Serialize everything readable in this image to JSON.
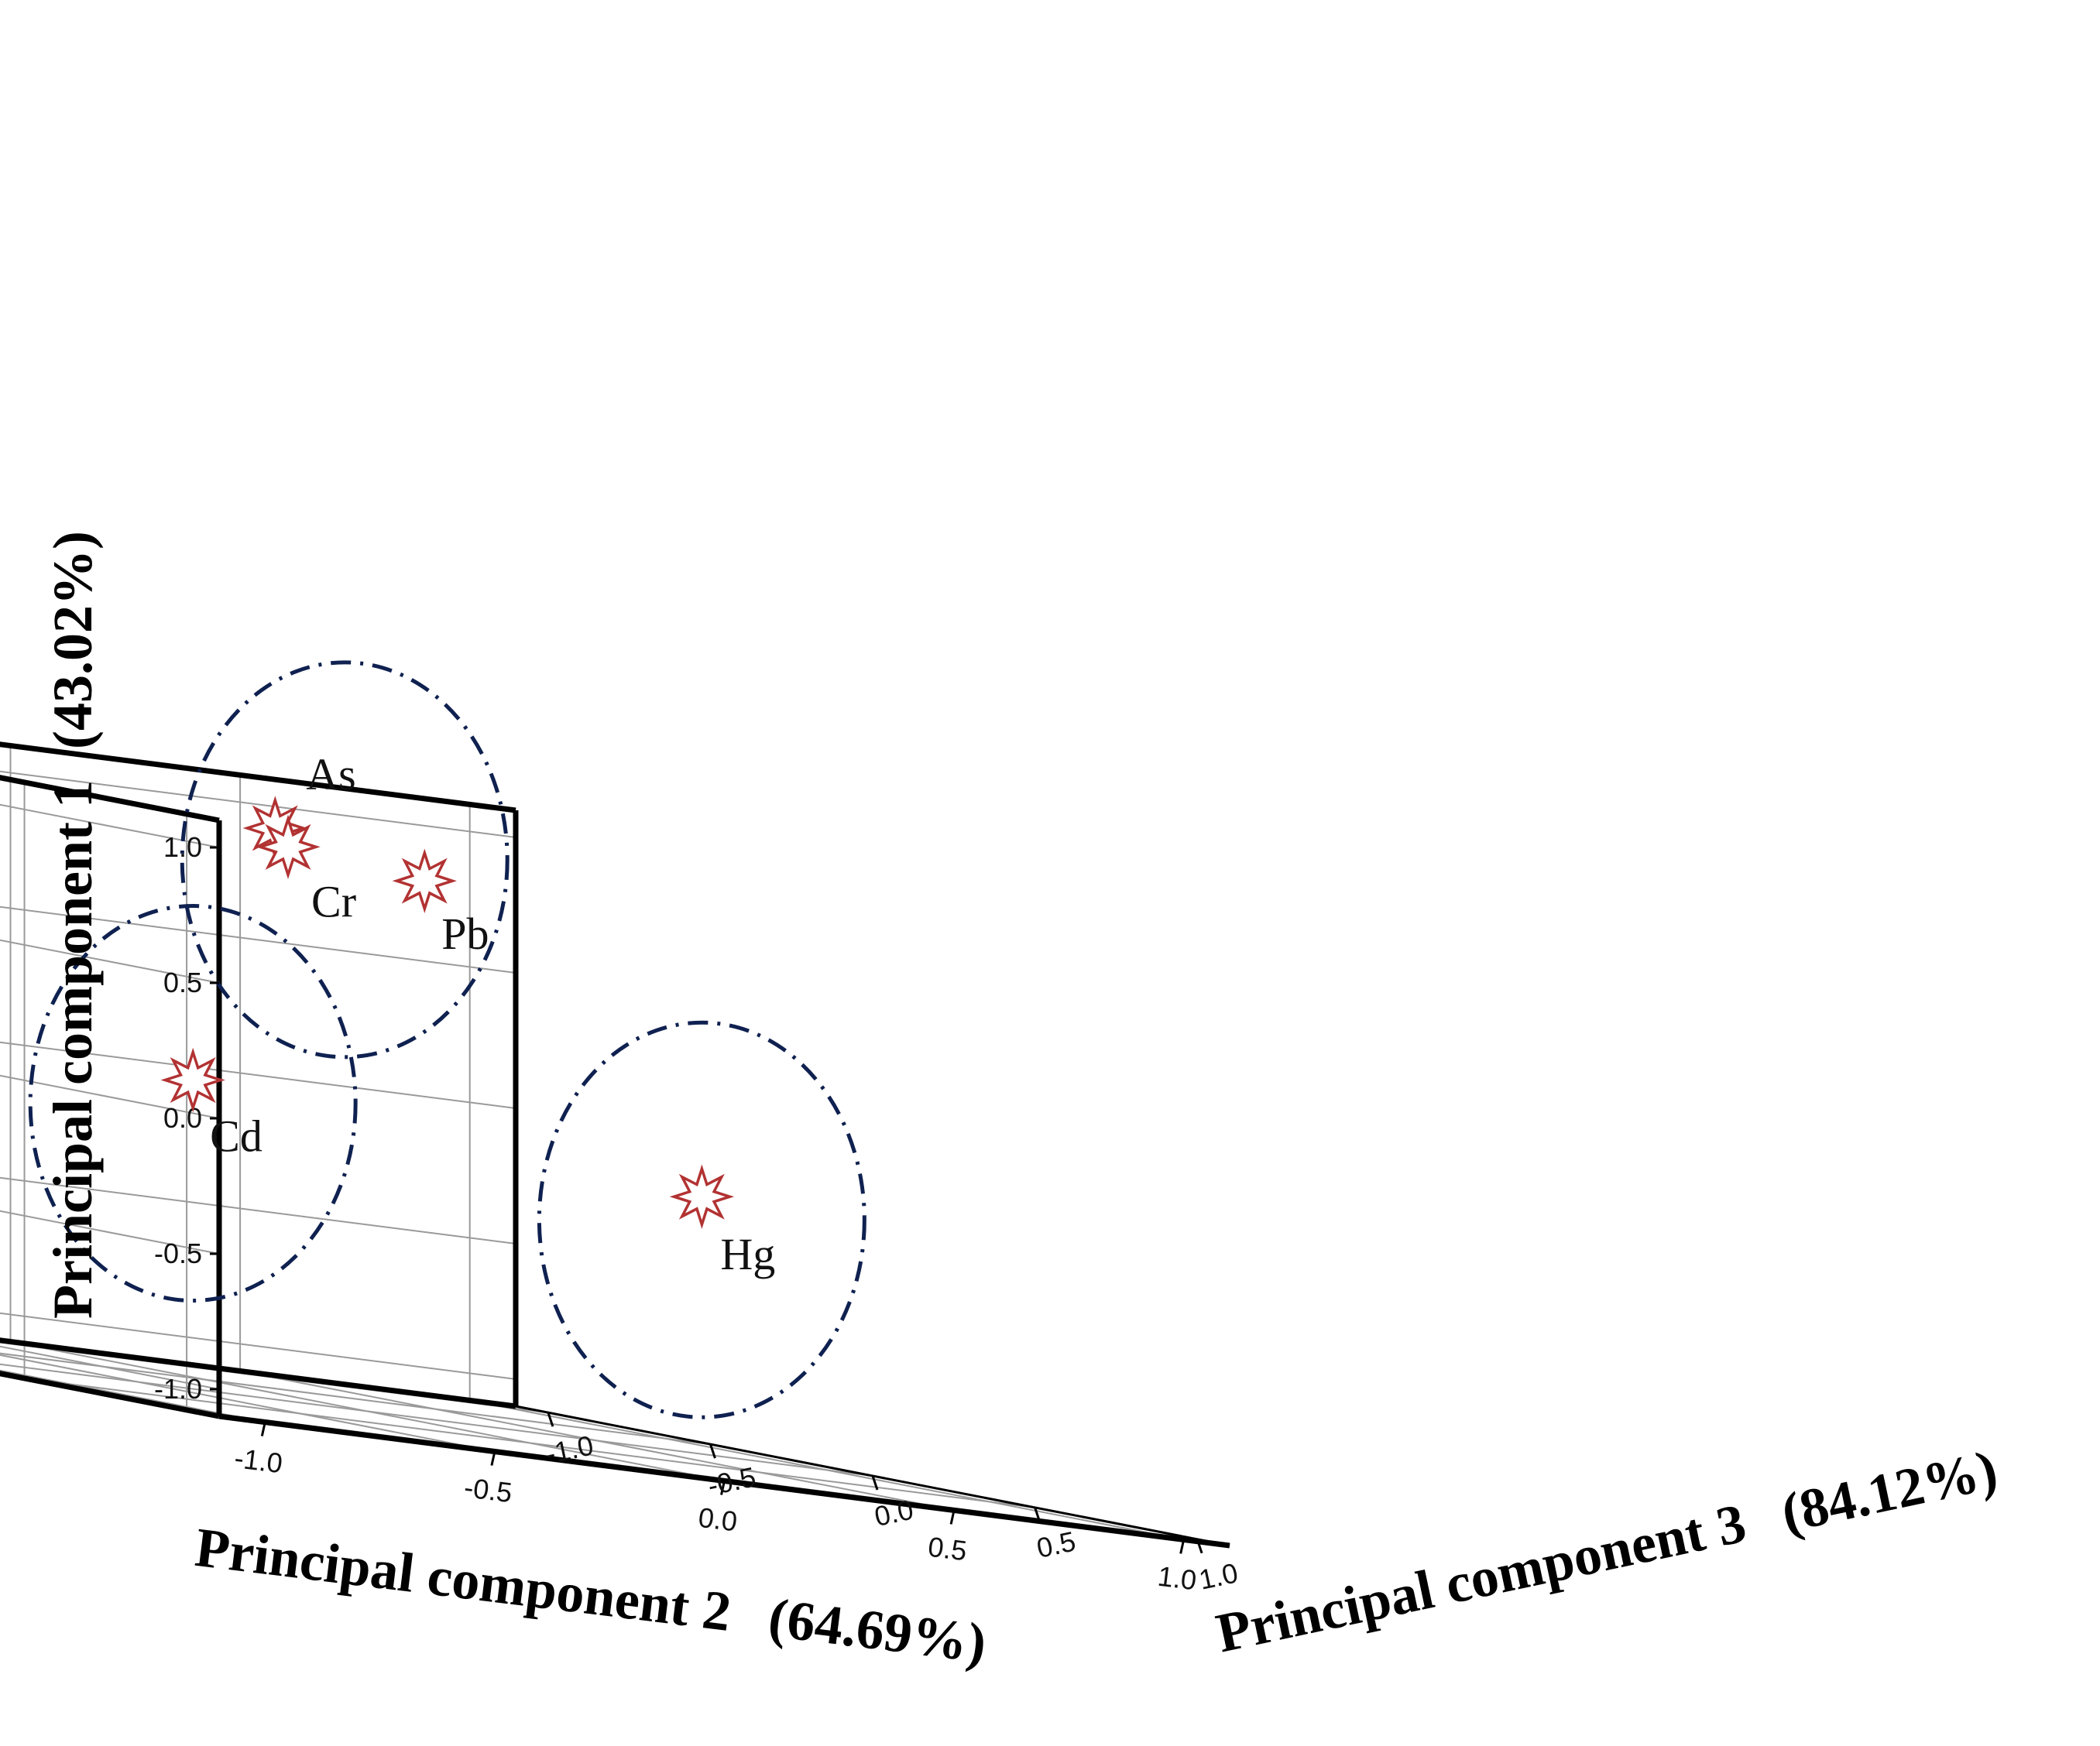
{
  "chart_data": {
    "type": "scatter",
    "dimensions": 3,
    "title": "",
    "axes": {
      "z": {
        "label": "Principal component 1",
        "variance": "(43.02%)",
        "range": [
          -1.0,
          1.0
        ],
        "ticks": [
          "1.0",
          "0.5",
          "0.0",
          "-0.5",
          "-1.0"
        ]
      },
      "x": {
        "label": "Principal component 2",
        "variance": "(64.69%)",
        "range": [
          -1.0,
          1.0
        ],
        "ticks": [
          "-1.0",
          "-0.5",
          "0.0",
          "0.5",
          "1.0"
        ]
      },
      "y": {
        "label": "Principal component 3",
        "variance": "(84.12%)",
        "range": [
          -1.0,
          1.0
        ],
        "ticks": [
          "-1.0",
          "-0.5",
          "0.0",
          "0.5",
          "1.0"
        ]
      }
    },
    "grid": true,
    "points": [
      {
        "label": "As",
        "pc2": 0.23,
        "pc3": -0.61,
        "pc1": 0.96
      },
      {
        "label": "Cr",
        "pc2": 0.23,
        "pc3": -0.57,
        "pc1": 0.9
      },
      {
        "label": "Pb",
        "pc2": 0.52,
        "pc3": -0.56,
        "pc1": 0.84
      },
      {
        "label": "Hg",
        "pc2": 0.29,
        "pc3": 0.62,
        "pc1": -0.1
      },
      {
        "label": "Cd",
        "pc2": 0.15,
        "pc3": -0.75,
        "pc1": -0.02
      }
    ],
    "clusters": [
      {
        "members": [
          "As",
          "Cr",
          "Pb"
        ]
      },
      {
        "members": [
          "Hg"
        ]
      },
      {
        "members": [
          "Cd"
        ]
      }
    ],
    "colors": {
      "marker": "#b23232",
      "cluster_outline": "#0f2150",
      "grid": "#9a9a9a",
      "frame": "#000000"
    }
  }
}
